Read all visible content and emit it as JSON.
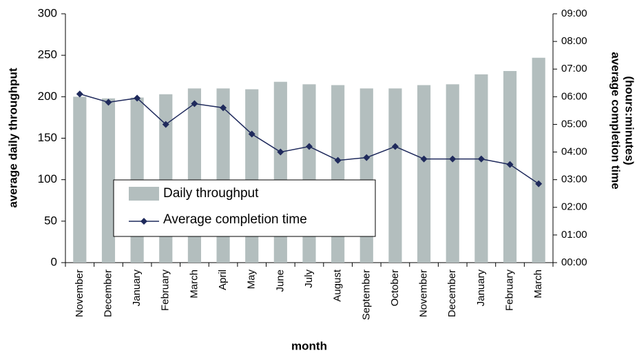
{
  "chart_data": {
    "type": "bar-line",
    "xlabel": "month",
    "ylabel": "average daily throughput",
    "y2label": [
      "average completion time",
      "(hours:minutes)"
    ],
    "categories": [
      "November",
      "December",
      "January",
      "February",
      "March",
      "April",
      "May",
      "June",
      "July",
      "August",
      "September",
      "October",
      "November",
      "December",
      "January",
      "February",
      "March"
    ],
    "series": [
      {
        "name": "Daily throughput",
        "type": "bar",
        "color": "#b3bebe",
        "values": [
          200,
          198,
          199,
          203,
          210,
          210,
          209,
          218,
          215,
          214,
          210,
          210,
          214,
          215,
          227,
          231,
          247
        ]
      },
      {
        "name": "Average completion time",
        "type": "line",
        "axis": "y2",
        "color": "#1f2a5c",
        "values": [
          6.1,
          5.8,
          5.95,
          5.0,
          5.75,
          5.6,
          4.65,
          4.0,
          4.2,
          3.7,
          3.8,
          4.2,
          3.75,
          3.75,
          3.75,
          3.55,
          2.85
        ]
      }
    ],
    "ylim": [
      0,
      300
    ],
    "yticks": [
      0,
      50,
      100,
      150,
      200,
      250,
      300
    ],
    "y2lim": [
      0,
      9
    ],
    "y2ticks": [
      {
        "value": 0,
        "label": "00:00"
      },
      {
        "value": 1,
        "label": "01:00"
      },
      {
        "value": 2,
        "label": "02:00"
      },
      {
        "value": 3,
        "label": "03:00"
      },
      {
        "value": 4,
        "label": "04:00"
      },
      {
        "value": 5,
        "label": "05:00"
      },
      {
        "value": 6,
        "label": "06:00"
      },
      {
        "value": 7,
        "label": "07:00"
      },
      {
        "value": 8,
        "label": "08:00"
      },
      {
        "value": 9,
        "label": "09:00"
      }
    ],
    "grid": false,
    "legend": "center-left"
  }
}
